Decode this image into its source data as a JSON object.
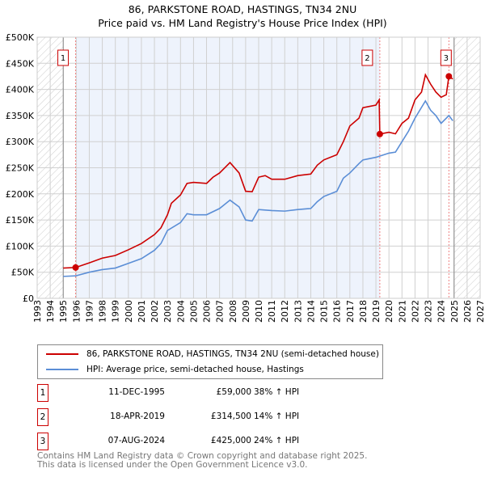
{
  "chart_data": {
    "type": "line",
    "title": "86, PARKSTONE ROAD, HASTINGS, TN34 2NU",
    "subtitle": "Price paid vs. HM Land Registry's House Price Index (HPI)",
    "xlim": [
      1993,
      2027
    ],
    "ylim": [
      0,
      500000
    ],
    "x_ticks": [
      "1993",
      "1994",
      "1995",
      "1996",
      "1997",
      "1998",
      "1999",
      "2000",
      "2001",
      "2002",
      "2003",
      "2004",
      "2005",
      "2006",
      "2007",
      "2008",
      "2009",
      "2010",
      "2011",
      "2012",
      "2013",
      "2014",
      "2015",
      "2016",
      "2017",
      "2018",
      "2019",
      "2020",
      "2021",
      "2022",
      "2023",
      "2024",
      "2025",
      "2026",
      "2027"
    ],
    "y_ticks": [
      "£0",
      "£50K",
      "£100K",
      "£150K",
      "£200K",
      "£250K",
      "£300K",
      "£350K",
      "£400K",
      "£450K",
      "£500K"
    ],
    "grid": true,
    "series": [
      {
        "name": "86, PARKSTONE ROAD, HASTINGS, TN34 2NU (semi-detached house)",
        "color": "#cc0000",
        "x": [
          1995,
          1995.95,
          1997,
          1998,
          1999,
          2000,
          2001,
          2002,
          2002.5,
          2003,
          2003.3,
          2004,
          2004.5,
          2005,
          2006,
          2006.5,
          2007,
          2007.8,
          2008.5,
          2009,
          2009.5,
          2010,
          2010.5,
          2011,
          2012,
          2013,
          2014,
          2014.5,
          2015,
          2016,
          2016.5,
          2017,
          2017.7,
          2018,
          2019,
          2019.25,
          2019.3,
          2020,
          2020.5,
          2021,
          2021.5,
          2022,
          2022.5,
          2022.8,
          2023.2,
          2023.6,
          2024,
          2024.4,
          2024.6,
          2024.9
        ],
        "y": [
          58,
          59,
          68,
          77,
          82,
          93,
          105,
          122,
          135,
          160,
          182,
          198,
          220,
          222,
          220,
          232,
          240,
          260,
          240,
          205,
          204,
          232,
          235,
          228,
          228,
          235,
          238,
          255,
          265,
          275,
          300,
          330,
          345,
          365,
          370,
          380,
          314.5,
          318,
          315,
          335,
          345,
          380,
          395,
          428,
          410,
          395,
          385,
          390,
          425,
          420
        ]
      },
      {
        "name": "HPI: Average price, semi-detached house, Hastings",
        "color": "#5b8ed6",
        "x": [
          1995,
          1995.95,
          1997,
          1998,
          1999,
          2000,
          2001,
          2002,
          2002.5,
          2003,
          2004,
          2004.5,
          2005,
          2006,
          2007,
          2007.8,
          2008.5,
          2009,
          2009.5,
          2010,
          2011,
          2012,
          2013,
          2014,
          2014.5,
          2015,
          2016,
          2016.5,
          2017,
          2017.7,
          2018,
          2019,
          2020,
          2020.5,
          2021,
          2021.5,
          2022,
          2022.8,
          2023.2,
          2023.6,
          2024,
          2024.4,
          2024.6,
          2024.9
        ],
        "y": [
          42,
          43,
          50,
          55,
          58,
          67,
          76,
          92,
          105,
          130,
          145,
          162,
          160,
          160,
          172,
          188,
          175,
          150,
          148,
          170,
          168,
          167,
          170,
          172,
          185,
          195,
          205,
          230,
          240,
          258,
          265,
          270,
          278,
          280,
          300,
          320,
          345,
          378,
          360,
          350,
          335,
          345,
          350,
          340
        ]
      }
    ],
    "y_units": "thousands GBP",
    "sales": [
      {
        "label": "1",
        "x": 1995.95,
        "y": 59
      },
      {
        "label": "2",
        "x": 2019.3,
        "y": 314.5
      },
      {
        "label": "3",
        "x": 2024.6,
        "y": 425
      }
    ],
    "legend_placement": "below"
  },
  "legend": {
    "property": "86, PARKSTONE ROAD, HASTINGS, TN34 2NU (semi-detached house)",
    "hpi": "HPI: Average price, semi-detached house, Hastings"
  },
  "transactions": [
    {
      "num": "1",
      "date": "11-DEC-1995",
      "price": "£59,000",
      "hpi": "38% ↑ HPI"
    },
    {
      "num": "2",
      "date": "18-APR-2019",
      "price": "£314,500",
      "hpi": "14% ↑ HPI"
    },
    {
      "num": "3",
      "date": "07-AUG-2024",
      "price": "£425,000",
      "hpi": "24% ↑ HPI"
    }
  ],
  "footer": {
    "line1": "Contains HM Land Registry data © Crown copyright and database right 2025.",
    "line2": "This data is licensed under the Open Government Licence v3.0."
  }
}
